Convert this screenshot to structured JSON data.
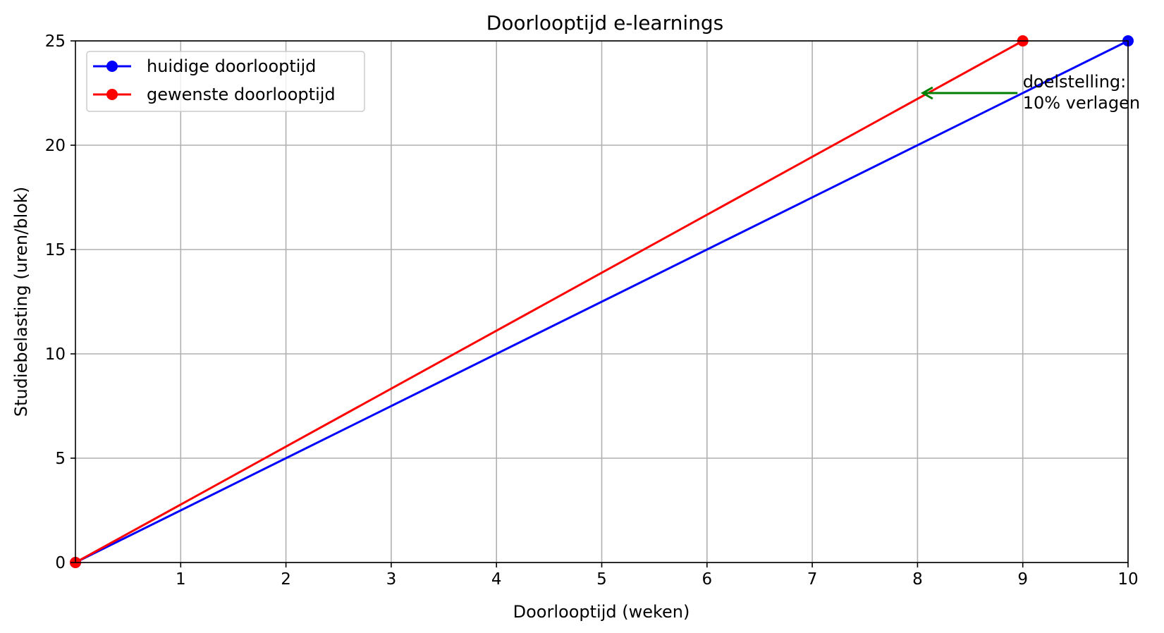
{
  "chart_data": {
    "type": "line",
    "title": "Doorlooptijd e-learnings",
    "xlabel": "Doorlooptijd (weken)",
    "ylabel": "Studiebelasting (uren/blok)",
    "xlim": [
      0,
      10
    ],
    "ylim": [
      0,
      25
    ],
    "xticks": [
      1,
      2,
      3,
      4,
      5,
      6,
      7,
      8,
      9,
      10
    ],
    "yticks": [
      0,
      5,
      10,
      15,
      20,
      25
    ],
    "grid": true,
    "legend_position": "top-left",
    "series": [
      {
        "name": "huidige doorlooptijd",
        "color": "#0000ff",
        "x": [
          0,
          10
        ],
        "y": [
          0,
          25
        ]
      },
      {
        "name": "gewenste doorlooptijd",
        "color": "#ff0000",
        "x": [
          0,
          9
        ],
        "y": [
          0,
          25
        ]
      }
    ],
    "annotation": {
      "lines": [
        "doelstelling:",
        "10% verlagen"
      ],
      "color": "#008000",
      "text_at": [
        9,
        22.5
      ],
      "arrow_from": [
        8.95,
        22.5
      ],
      "arrow_to": [
        8.05,
        22.5
      ]
    }
  }
}
